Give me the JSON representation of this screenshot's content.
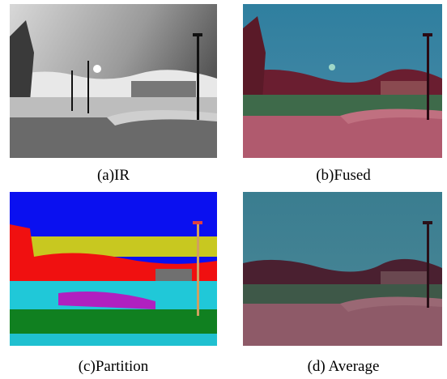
{
  "panels": [
    {
      "caption": "(a)IR"
    },
    {
      "caption": "(b)Fused"
    },
    {
      "caption": "(c)Partition"
    },
    {
      "caption": "(d) Average"
    }
  ]
}
